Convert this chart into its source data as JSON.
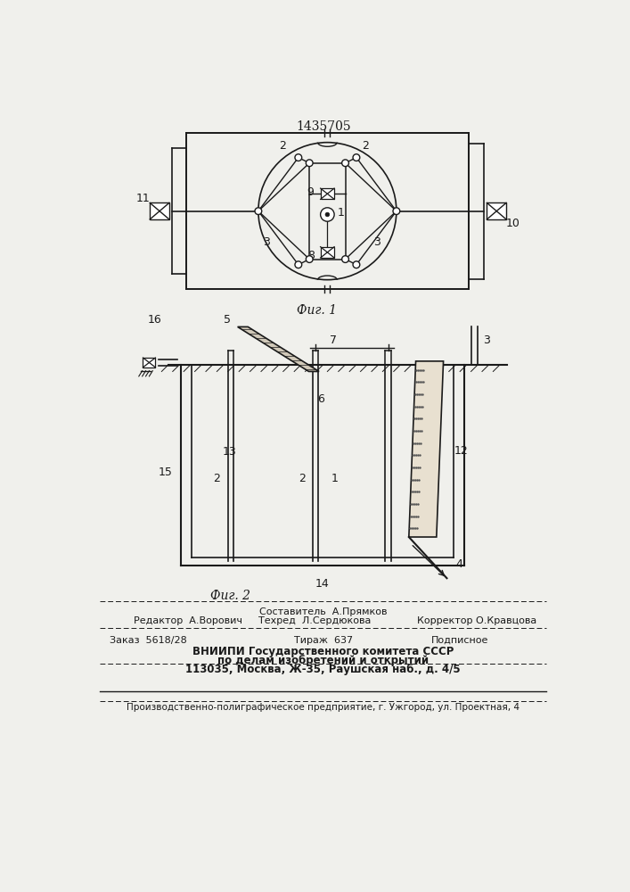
{
  "patent_number": "1435705",
  "fig1_label": "Фиг. 1",
  "fig2_label": "Фиг. 2",
  "bg_color": "#f0f0ec",
  "line_color": "#1a1a1a",
  "editor_line": "Редактор  А.Ворович",
  "composer_line": "Составитель  А.Прямков",
  "techred_line": "Техред  Л.Сердюкова",
  "corrector_line": "Корректор О.Кравцова",
  "order_line": "Заказ  5618/28",
  "tirazh_line": "Тираж  637",
  "podpisnoe_line": "Подписное",
  "vniipi_line1": "ВНИИПИ Государственного комитета СССР",
  "vniipi_line2": "по делам изобретений и открытий",
  "vniipi_line3": "113035, Москва, Ж-35, Раушская наб., д. 4/5",
  "factory_line": "Производственно-полиграфическое предприятие, г. Ужгород, ул. Проектная, 4"
}
